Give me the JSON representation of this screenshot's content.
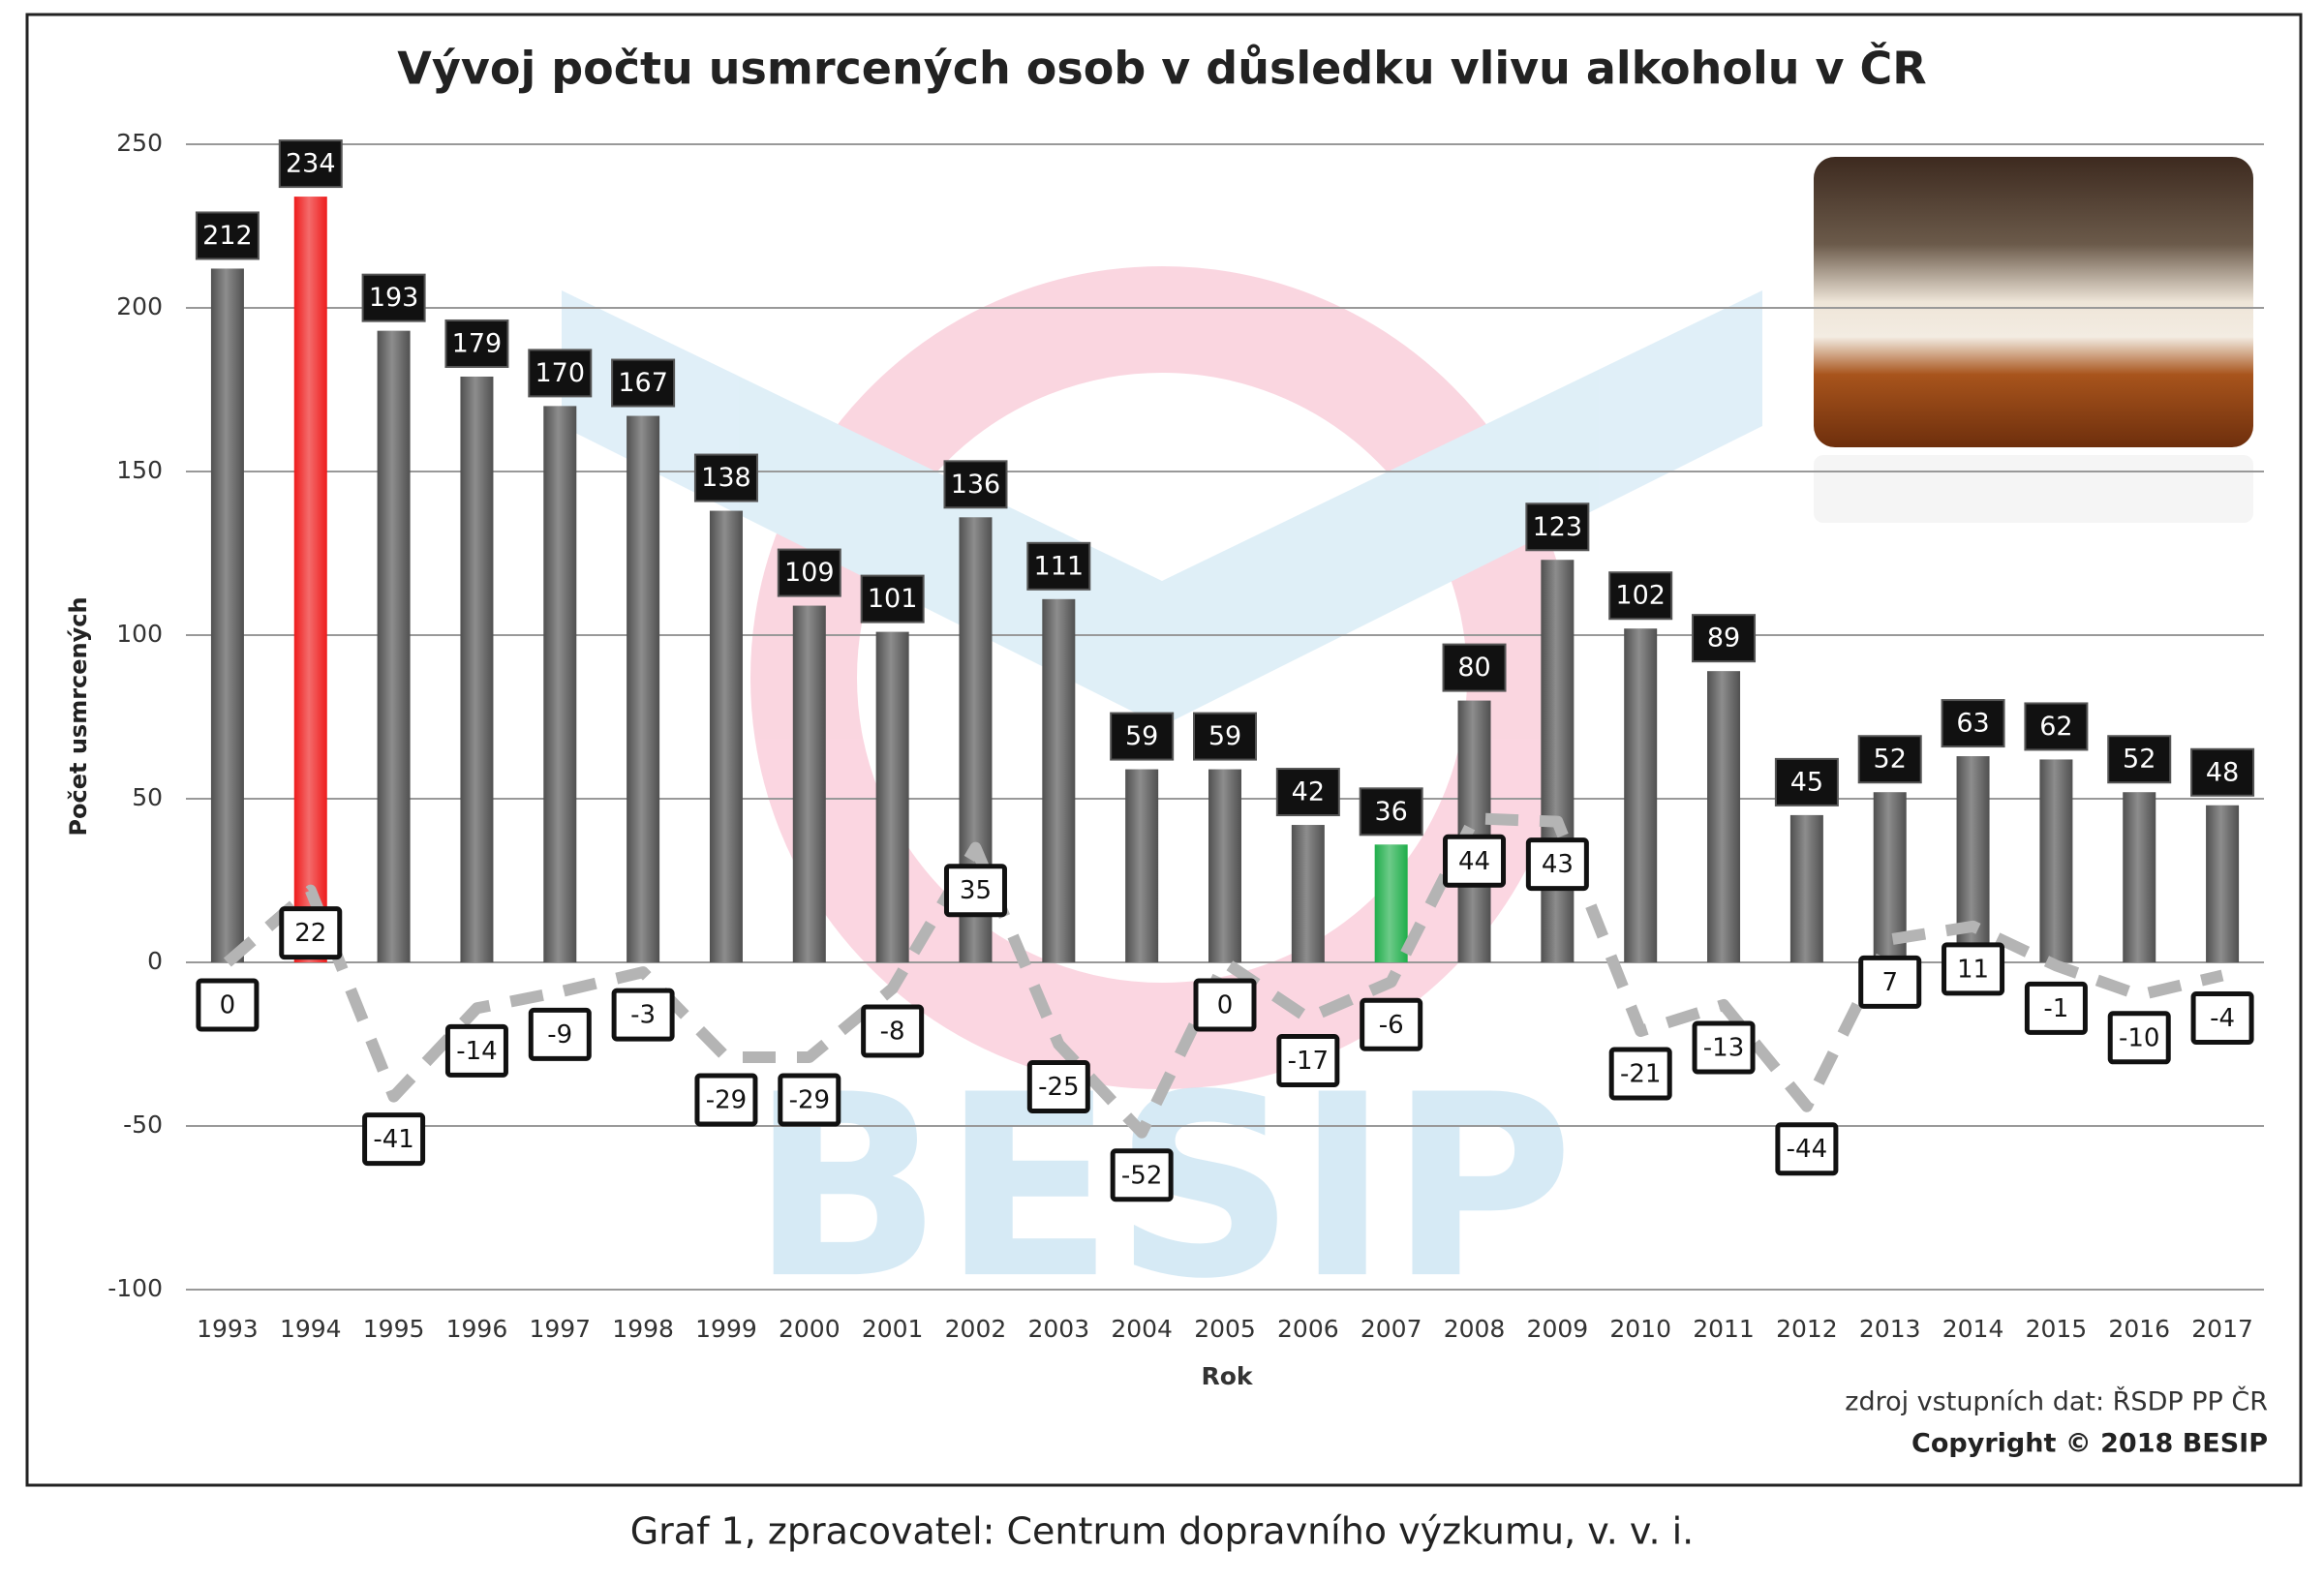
{
  "chart_data": {
    "type": "bar",
    "title": "Vývoj počtu usmrcených osob v důsledku vlivu alkoholu v ČR",
    "y_label": "Počet usmrcených",
    "x_label": "Rok",
    "source": "zdroj vstupních dat: ŘSDP PP ČR",
    "copyright": "Copyright © 2018 BESIP",
    "watermark": "BESIP",
    "caption": "Graf 1, zpracovatel: Centrum dopravního výzkumu, v. v. i.",
    "categories": [
      "1993",
      "1994",
      "1995",
      "1996",
      "1997",
      "1998",
      "1999",
      "2000",
      "2001",
      "2002",
      "2003",
      "2004",
      "2005",
      "2006",
      "2007",
      "2008",
      "2009",
      "2010",
      "2011",
      "2012",
      "2013",
      "2014",
      "2015",
      "2016",
      "2017"
    ],
    "series": [
      {
        "type": "bar",
        "values": [
          212,
          234,
          193,
          179,
          170,
          167,
          138,
          109,
          101,
          136,
          111,
          59,
          59,
          42,
          36,
          80,
          123,
          102,
          89,
          45,
          52,
          63,
          62,
          52,
          48
        ],
        "colors": [
          "#505050",
          "#ee1c1c",
          "#505050",
          "#505050",
          "#505050",
          "#505050",
          "#505050",
          "#505050",
          "#505050",
          "#505050",
          "#505050",
          "#505050",
          "#505050",
          "#505050",
          "#1fae4a",
          "#505050",
          "#505050",
          "#505050",
          "#505050",
          "#505050",
          "#505050",
          "#505050",
          "#505050",
          "#505050",
          "#505050"
        ]
      },
      {
        "type": "line",
        "values": [
          0,
          22,
          -41,
          -14,
          -9,
          -3,
          -29,
          -29,
          -8,
          35,
          -25,
          -52,
          0,
          -17,
          -6,
          44,
          43,
          -21,
          -13,
          -44,
          7,
          11,
          -1,
          -10,
          -4
        ],
        "color": "#b4b4b4"
      }
    ],
    "ylim": [
      -100,
      250
    ],
    "yticks": [
      -100,
      -50,
      0,
      50,
      100,
      150,
      200,
      250
    ],
    "grid": true
  }
}
